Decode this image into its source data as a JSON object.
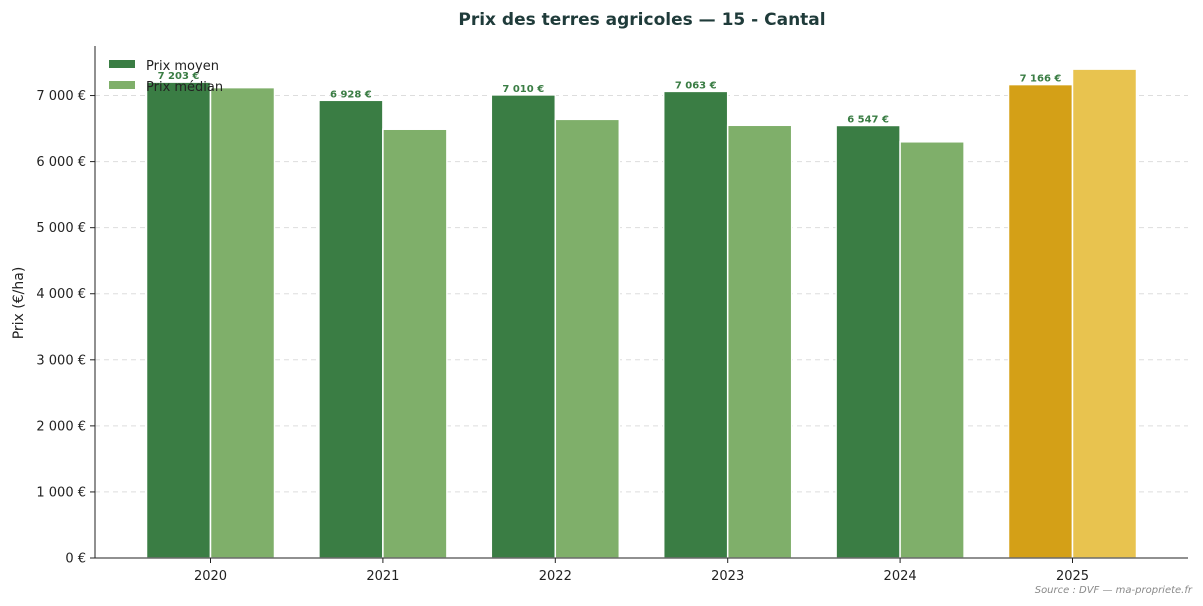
{
  "chart_data": {
    "type": "bar",
    "title": "Prix des terres agricoles — 15 - Cantal",
    "xlabel": "",
    "ylabel": "Prix (€/ha)",
    "ylim": [
      0,
      7750
    ],
    "y_ticks": [
      0,
      1000,
      2000,
      3000,
      4000,
      5000,
      6000,
      7000
    ],
    "y_tick_labels": [
      "0 €",
      "1 000 €",
      "2 000 €",
      "3 000 €",
      "4 000 €",
      "5 000 €",
      "6 000 €",
      "7 000 €"
    ],
    "grid": "horizontal dashed",
    "legend_position": "top-left",
    "categories": [
      "2020",
      "2021",
      "2022",
      "2023",
      "2024",
      "2025"
    ],
    "series": [
      {
        "name": "Prix moyen",
        "color": "#3a7d44",
        "highlight_color": "#d4a017",
        "values": [
          7203,
          6928,
          7010,
          7063,
          6547,
          7166
        ],
        "value_labels": [
          "7 203 €",
          "6 928 €",
          "7 010 €",
          "7 063 €",
          "6 547 €",
          "7 166 €"
        ]
      },
      {
        "name": "Prix médian",
        "color": "#7faf6a",
        "highlight_color": "#e8c34f",
        "values": [
          7120,
          6490,
          6640,
          6550,
          6300,
          7400
        ]
      }
    ],
    "highlighted_category": "2025",
    "value_label_color": "#3a7d44",
    "source": "Source : DVF — ma-propriete.fr"
  }
}
